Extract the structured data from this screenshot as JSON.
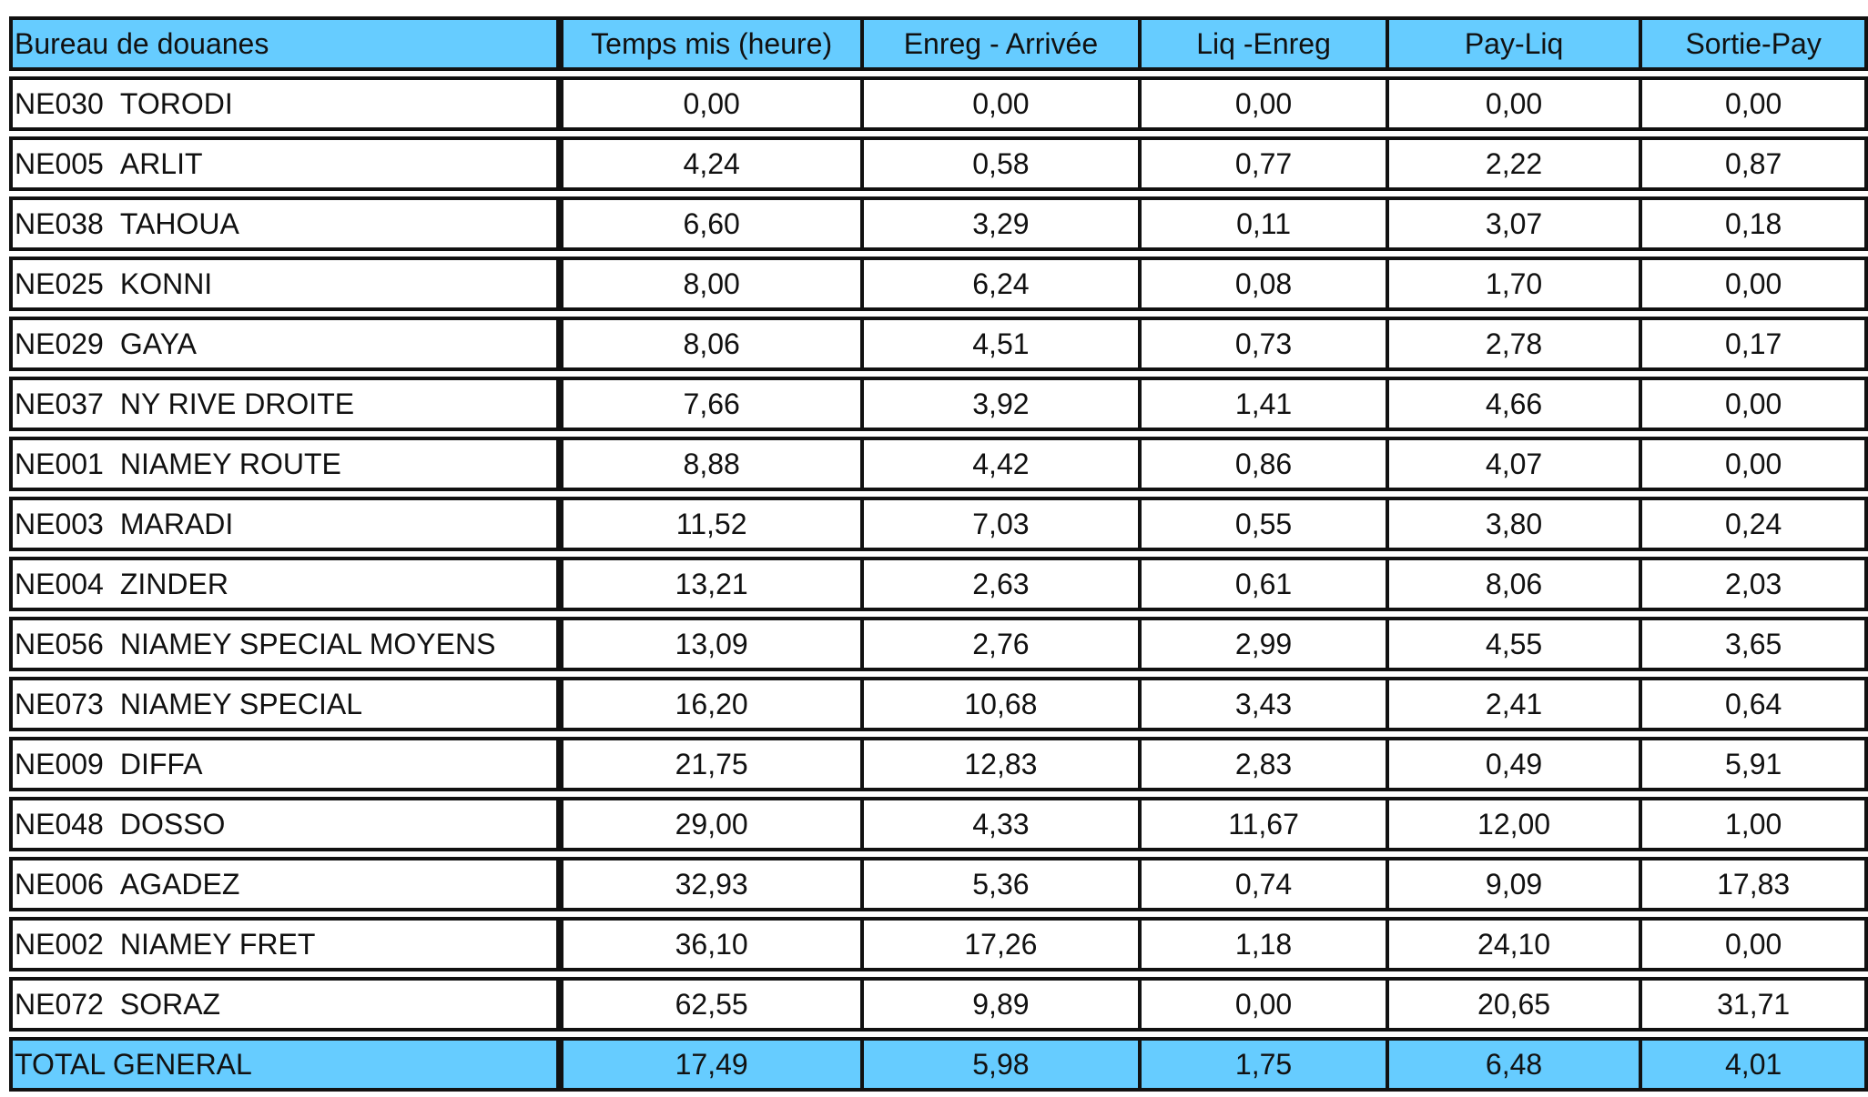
{
  "table": {
    "headers": [
      "Bureau de douanes",
      "Temps mis (heure)",
      "Enreg - Arrivée",
      "Liq -Enreg",
      "Pay-Liq",
      "Sortie-Pay"
    ],
    "rows": [
      {
        "code": "NE030",
        "name": "TORODI",
        "values": [
          "0,00",
          "0,00",
          "0,00",
          "0,00",
          "0,00"
        ]
      },
      {
        "code": "NE005",
        "name": "ARLIT",
        "values": [
          "4,24",
          "0,58",
          "0,77",
          "2,22",
          "0,87"
        ]
      },
      {
        "code": "NE038",
        "name": "TAHOUA",
        "values": [
          "6,60",
          "3,29",
          "0,11",
          "3,07",
          "0,18"
        ]
      },
      {
        "code": "NE025",
        "name": "KONNI",
        "values": [
          "8,00",
          "6,24",
          "0,08",
          "1,70",
          "0,00"
        ]
      },
      {
        "code": "NE029",
        "name": "GAYA",
        "values": [
          "8,06",
          "4,51",
          "0,73",
          "2,78",
          "0,17"
        ]
      },
      {
        "code": "NE037",
        "name": "NY RIVE DROITE",
        "values": [
          "7,66",
          "3,92",
          "1,41",
          "4,66",
          "0,00"
        ]
      },
      {
        "code": "NE001",
        "name": "NIAMEY ROUTE",
        "values": [
          "8,88",
          "4,42",
          "0,86",
          "4,07",
          "0,00"
        ]
      },
      {
        "code": "NE003",
        "name": "MARADI",
        "values": [
          "11,52",
          "7,03",
          "0,55",
          "3,80",
          "0,24"
        ]
      },
      {
        "code": "NE004",
        "name": "ZINDER",
        "values": [
          "13,21",
          "2,63",
          "0,61",
          "8,06",
          "2,03"
        ]
      },
      {
        "code": "NE056",
        "name": "NIAMEY SPECIAL MOYENS",
        "values": [
          "13,09",
          "2,76",
          "2,99",
          "4,55",
          "3,65"
        ]
      },
      {
        "code": "NE073",
        "name": "NIAMEY SPECIAL",
        "values": [
          "16,20",
          "10,68",
          "3,43",
          "2,41",
          "0,64"
        ]
      },
      {
        "code": "NE009",
        "name": "DIFFA",
        "values": [
          "21,75",
          "12,83",
          "2,83",
          "0,49",
          "5,91"
        ]
      },
      {
        "code": "NE048",
        "name": "DOSSO",
        "values": [
          "29,00",
          "4,33",
          "11,67",
          "12,00",
          "1,00"
        ]
      },
      {
        "code": "NE006",
        "name": "AGADEZ",
        "values": [
          "32,93",
          "5,36",
          "0,74",
          "9,09",
          "17,83"
        ]
      },
      {
        "code": "NE002",
        "name": "NIAMEY FRET",
        "values": [
          "36,10",
          "17,26",
          "1,18",
          "24,10",
          "0,00"
        ]
      },
      {
        "code": "NE072",
        "name": "SORAZ",
        "values": [
          "62,55",
          "9,89",
          "0,00",
          "20,65",
          "31,71"
        ]
      }
    ],
    "total": {
      "label": "TOTAL GENERAL",
      "values": [
        "17,49",
        "5,98",
        "1,75",
        "6,48",
        "4,01"
      ]
    }
  },
  "colors": {
    "header_fill": "#66ccff",
    "total_fill": "#66ccff",
    "border": "#111111"
  }
}
